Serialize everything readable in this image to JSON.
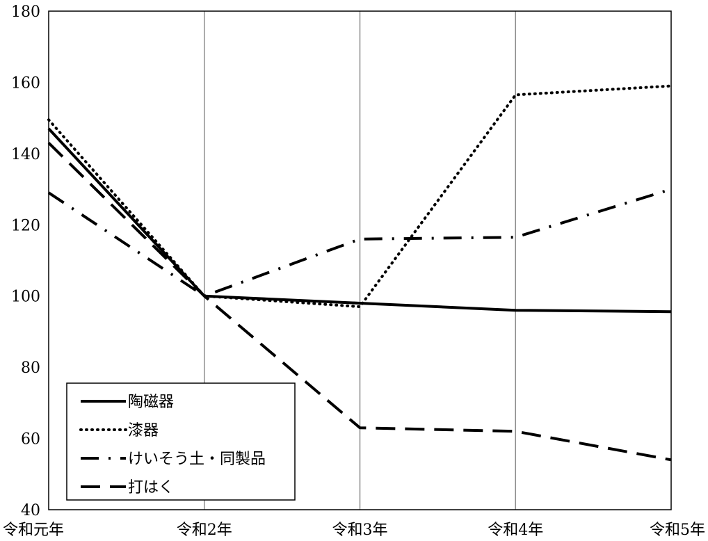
{
  "chart_data": {
    "type": "line",
    "categories": [
      "令和元年",
      "令和2年",
      "令和3年",
      "令和4年",
      "令和5年"
    ],
    "ylim": [
      40,
      180
    ],
    "yticks": [
      40,
      60,
      80,
      100,
      120,
      140,
      160,
      180
    ],
    "grid": "vertical",
    "legend_position": "bottom-left",
    "series": [
      {
        "name": "陶磁器",
        "values": [
          147,
          100,
          98,
          96,
          95.6
        ],
        "style": "solid",
        "color": "#000000"
      },
      {
        "name": "漆器",
        "values": [
          149.5,
          100,
          97,
          156.5,
          159
        ],
        "style": "dotted",
        "color": "#000000"
      },
      {
        "name": "けいそう土・同製品",
        "values": [
          129,
          100,
          116,
          116.5,
          130
        ],
        "style": "dashdot",
        "color": "#000000"
      },
      {
        "name": "打はく",
        "values": [
          143,
          100,
          63,
          62,
          54
        ],
        "style": "dashed",
        "color": "#000000"
      }
    ]
  }
}
